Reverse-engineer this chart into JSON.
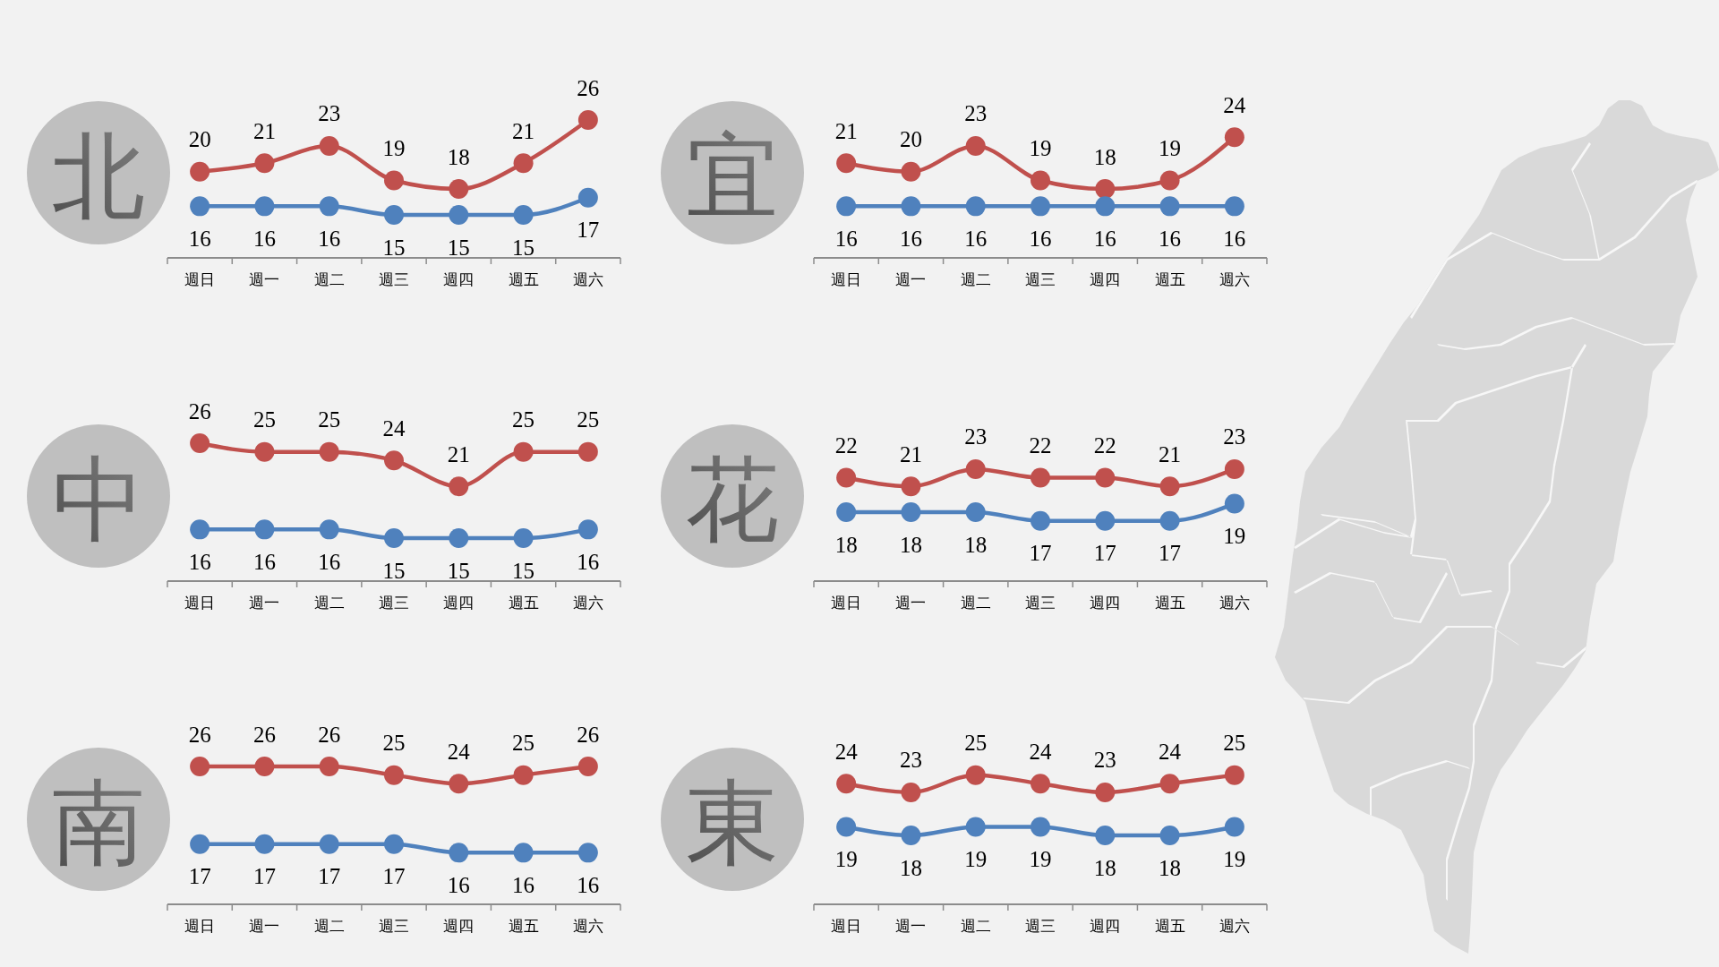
{
  "chart_data": [
    {
      "type": "line",
      "title": "北",
      "categories": [
        "週日",
        "週一",
        "週二",
        "週三",
        "週四",
        "週五",
        "週六"
      ],
      "series": [
        {
          "color": "#c0504d",
          "values": [
            20,
            21,
            23,
            19,
            18,
            21,
            26
          ]
        },
        {
          "color": "#4f81bd",
          "values": [
            16,
            16,
            16,
            15,
            15,
            15,
            17
          ]
        }
      ],
      "tick_labels": "x",
      "data_labels": true,
      "marker": "circle",
      "line_style": "solid"
    },
    {
      "type": "line",
      "title": "宜",
      "categories": [
        "週日",
        "週一",
        "週二",
        "週三",
        "週四",
        "週五",
        "週六"
      ],
      "series": [
        {
          "color": "#c0504d",
          "values": [
            21,
            20,
            23,
            19,
            18,
            19,
            24
          ]
        },
        {
          "color": "#4f81bd",
          "values": [
            16,
            16,
            16,
            16,
            16,
            16,
            16
          ]
        }
      ],
      "tick_labels": "x",
      "data_labels": true,
      "marker": "circle",
      "line_style": "solid"
    },
    {
      "type": "line",
      "title": "中",
      "categories": [
        "週日",
        "週一",
        "週二",
        "週三",
        "週四",
        "週五",
        "週六"
      ],
      "series": [
        {
          "color": "#c0504d",
          "values": [
            26,
            25,
            25,
            24,
            21,
            25,
            25
          ]
        },
        {
          "color": "#4f81bd",
          "values": [
            16,
            16,
            16,
            15,
            15,
            15,
            16
          ]
        }
      ],
      "tick_labels": "x",
      "data_labels": true,
      "marker": "circle",
      "line_style": "solid"
    },
    {
      "type": "line",
      "title": "花",
      "categories": [
        "週日",
        "週一",
        "週二",
        "週三",
        "週四",
        "週五",
        "週六"
      ],
      "series": [
        {
          "color": "#c0504d",
          "values": [
            22,
            21,
            23,
            22,
            22,
            21,
            23
          ]
        },
        {
          "color": "#4f81bd",
          "values": [
            18,
            18,
            18,
            17,
            17,
            17,
            19
          ]
        }
      ],
      "tick_labels": "x",
      "data_labels": true,
      "marker": "circle",
      "line_style": "solid"
    },
    {
      "type": "line",
      "title": "南",
      "categories": [
        "週日",
        "週一",
        "週二",
        "週三",
        "週四",
        "週五",
        "週六"
      ],
      "series": [
        {
          "color": "#c0504d",
          "values": [
            26,
            26,
            26,
            25,
            24,
            25,
            26
          ]
        },
        {
          "color": "#4f81bd",
          "values": [
            17,
            17,
            17,
            17,
            16,
            16,
            16
          ]
        }
      ],
      "tick_labels": "x",
      "data_labels": true,
      "marker": "circle",
      "line_style": "solid"
    },
    {
      "type": "line",
      "title": "東",
      "categories": [
        "週日",
        "週一",
        "週二",
        "週三",
        "週四",
        "週五",
        "週六"
      ],
      "series": [
        {
          "color": "#c0504d",
          "values": [
            24,
            23,
            25,
            24,
            23,
            24,
            25
          ]
        },
        {
          "color": "#4f81bd",
          "values": [
            19,
            18,
            19,
            19,
            18,
            18,
            19
          ]
        }
      ],
      "tick_labels": "x",
      "data_labels": true,
      "marker": "circle",
      "line_style": "solid"
    }
  ]
}
